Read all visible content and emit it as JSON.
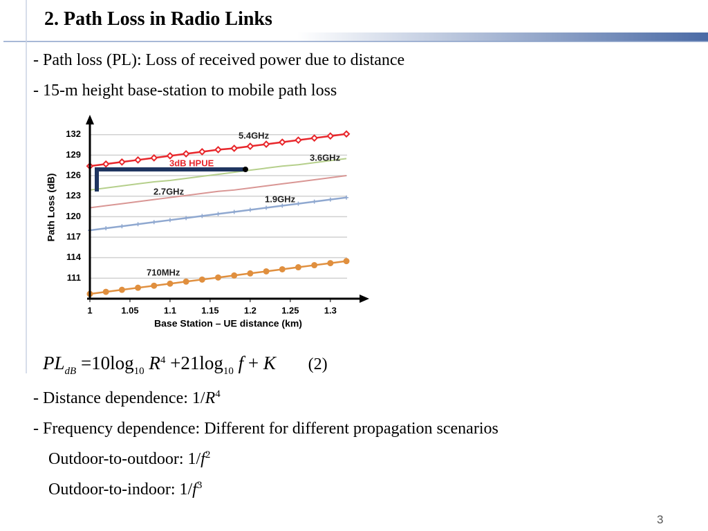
{
  "title": "2. Path Loss in Radio Links",
  "bullets_top": [
    "- Path loss (PL): Loss of received power due to distance",
    "- 15-m height base-station to mobile path loss"
  ],
  "chart_data": {
    "type": "line",
    "y_label": "Path Loss (dB)",
    "x_label": "Base Station – UE distance (km)",
    "x": [
      1.0,
      1.02,
      1.04,
      1.06,
      1.08,
      1.1,
      1.12,
      1.14,
      1.16,
      1.18,
      1.2,
      1.22,
      1.24,
      1.26,
      1.28,
      1.3,
      1.32
    ],
    "xlim": [
      1,
      1.345
    ],
    "xticks": [
      1,
      1.05,
      1.1,
      1.15,
      1.2,
      1.25,
      1.3
    ],
    "ylim": [
      108,
      134.3
    ],
    "yticks": [
      111,
      114,
      117,
      120,
      123,
      126,
      129,
      132
    ],
    "grid": true,
    "series": [
      {
        "name": "5.4GHz",
        "color": "#e8262b",
        "marker": "diamond",
        "values": [
          127.4,
          127.7,
          128.0,
          128.3,
          128.6,
          128.9,
          129.2,
          129.5,
          129.8,
          130.0,
          130.3,
          130.6,
          130.9,
          131.2,
          131.5,
          131.8,
          132.1
        ]
      },
      {
        "name": "3.6GHz",
        "color": "#b5cf8b",
        "marker": "none",
        "values": [
          123.9,
          124.2,
          124.5,
          124.8,
          125.1,
          125.3,
          125.6,
          125.9,
          126.2,
          126.5,
          126.8,
          127.1,
          127.4,
          127.6,
          127.9,
          128.2,
          128.5
        ]
      },
      {
        "name": "2.7GHz",
        "color": "#d99694",
        "marker": "none",
        "values": [
          121.3,
          121.6,
          121.9,
          122.2,
          122.5,
          122.8,
          123.1,
          123.4,
          123.7,
          123.9,
          124.2,
          124.5,
          124.8,
          125.1,
          125.4,
          125.7,
          126.0
        ]
      },
      {
        "name": "1.9GHz",
        "color": "#8fa8d0",
        "marker": "plus",
        "values": [
          118.0,
          118.3,
          118.6,
          118.9,
          119.2,
          119.5,
          119.8,
          120.1,
          120.4,
          120.7,
          121.0,
          121.3,
          121.6,
          121.9,
          122.2,
          122.5,
          122.8
        ]
      },
      {
        "name": "710MHz",
        "color": "#e08f3e",
        "marker": "circle",
        "values": [
          108.7,
          109.0,
          109.3,
          109.6,
          109.9,
          110.2,
          110.5,
          110.8,
          111.1,
          111.4,
          111.7,
          112.0,
          112.3,
          112.6,
          112.9,
          113.2,
          113.5
        ]
      }
    ],
    "annotations": [
      {
        "text": "3dB HPUE",
        "color": "#e8262b"
      }
    ]
  },
  "equation": {
    "pl": "PL",
    "pl_sub": "dB",
    "eq": "=10log",
    "log_sub": "10",
    "r": "R",
    "r_exp": "4",
    "plus": "+21log",
    "log_sub2": "10",
    "f": "f",
    "plus2": "+",
    "k": "K",
    "number": "(2)"
  },
  "bullets_bottom": [
    {
      "text": "- Distance dependence: 1/",
      "var": "R",
      "exp": "4"
    },
    {
      "text": "- Frequency dependence: Different for different propagation scenarios"
    },
    {
      "text": "Outdoor-to-outdoor: 1/",
      "var": "f",
      "exp": "2"
    },
    {
      "text": "Outdoor-to-indoor: 1/",
      "var": "f",
      "exp": "3"
    }
  ],
  "page_number": "3"
}
